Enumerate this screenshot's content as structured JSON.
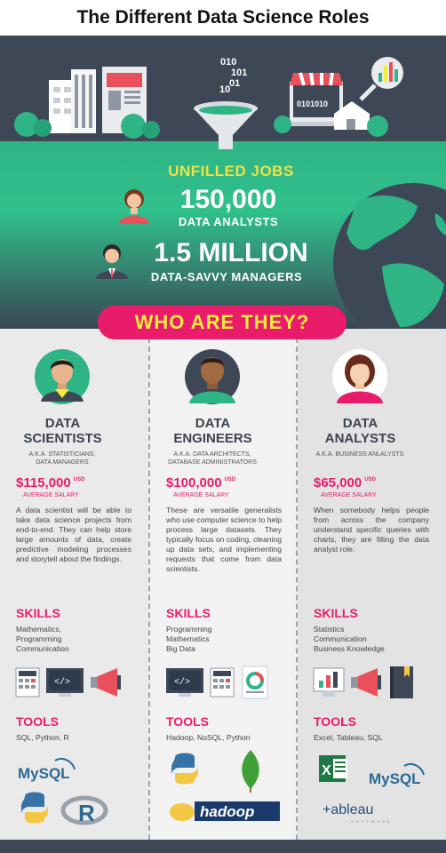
{
  "title": "The Different Data Science Roles",
  "hero": {
    "binary": [
      "010",
      "101",
      "01",
      "10"
    ],
    "store_binary": "0101010",
    "unfilled_label": "UNFILLED JOBS",
    "stat1_value": "150,000",
    "stat1_label": "DATA ANALYSTS",
    "stat2_value": "1.5 MILLION",
    "stat2_label": "DATA-SAVVY MANAGERS"
  },
  "banner": "WHO ARE THEY?",
  "roles": [
    {
      "name_line1": "DATA",
      "name_line2": "SCIENTISTS",
      "aka_line1": "A.K.A. STATISTICIANS,",
      "aka_line2": "DATA MANAGERS",
      "salary": "$115,000",
      "currency": "USD",
      "salary_label": "AVERAGE SALARY",
      "description": "A data scientist will be able to take data science projects from end-to-end. They can help store large amounts of data, create predictive modeling processes and storytell about the findings.",
      "skills_heading": "SKILLS",
      "skills": [
        "Mathematics,",
        "Programming",
        "Communication"
      ],
      "tools_heading": "TOOLS",
      "tools": "SQL, Python, R",
      "icons": [
        "calculator-icon",
        "code-monitor-icon",
        "megaphone-icon"
      ],
      "logos": [
        "mysql-logo",
        "python-logo",
        "r-logo"
      ]
    },
    {
      "name_line1": "DATA",
      "name_line2": "ENGINEERS",
      "aka_line1": "A.K.A. DATA ARCHITECTS,",
      "aka_line2": "DATABASE ADMINISTRATORS",
      "salary": "$100,000",
      "currency": "USD",
      "salary_label": "AVERAGE SALARY",
      "description": "These are versatile generalists who use computer science to help process large datasets. They typically focus on coding, cleaning up data sets, and implementing requests that come from data scientists.",
      "skills_heading": "SKILLS",
      "skills": [
        "Programming",
        "Mathematics",
        "Big Data"
      ],
      "tools_heading": "TOOLS",
      "tools": "Hadoop, NoSQL, Python",
      "icons": [
        "code-monitor-icon",
        "calculator-icon",
        "report-chart-icon"
      ],
      "logos": [
        "python-logo",
        "mongodb-leaf-logo",
        "hadoop-logo"
      ]
    },
    {
      "name_line1": "DATA",
      "name_line2": "ANALYSTS",
      "aka_line1": "A.K.A. BUSINESS ANLALYSTS",
      "aka_line2": "",
      "salary": "$65,000",
      "currency": "USD",
      "salary_label": "AVERAGE SALARY",
      "description": "When somebody helps people from across the company understand specific queries with charts, they are filling the data analyst role.",
      "skills_heading": "SKILLS",
      "skills": [
        "Statistics",
        "Communication",
        "Business Knowledge"
      ],
      "tools_heading": "TOOLS",
      "tools": "Excel, Tableau, SQL",
      "icons": [
        "chart-monitor-icon",
        "megaphone-icon",
        "book-icon"
      ],
      "logos": [
        "excel-logo",
        "mysql-logo",
        "tableau-logo"
      ]
    }
  ],
  "logo_text": {
    "mysql": "MySQL",
    "hadoop": "hadoop",
    "tableau": "+ableau",
    "tableau_sub": "SOFTWARE",
    "excel": "X",
    "r": "R",
    "code": "</>"
  },
  "colors": {
    "dark": "#3d4756",
    "green": "#2fb485",
    "pink": "#e81c6b",
    "yellow": "#f2ec3d"
  }
}
